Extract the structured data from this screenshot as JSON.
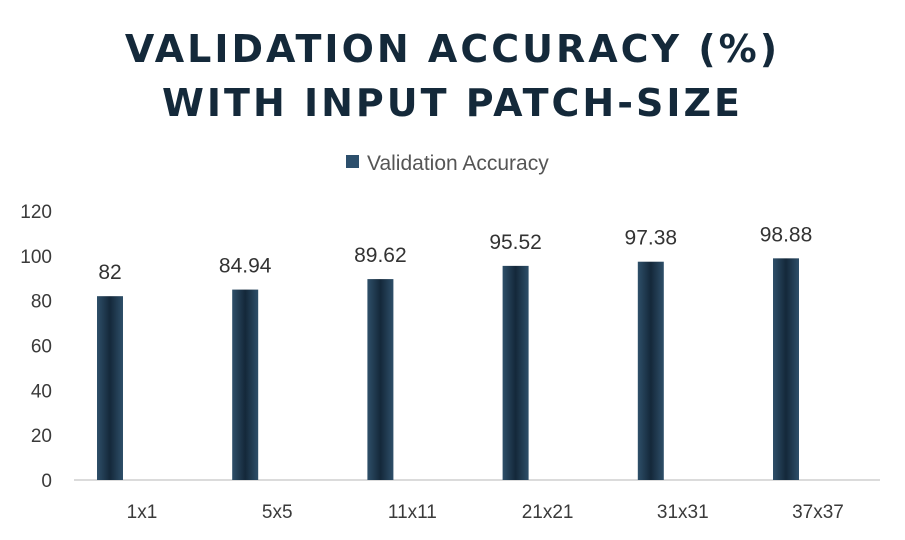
{
  "chart_data": {
    "type": "bar",
    "title_lines": [
      "VALIDATION ACCURACY (%)",
      "WITH INPUT PATCH-SIZE"
    ],
    "categories": [
      "1x1",
      "5x5",
      "11x11",
      "21x21",
      "31x31",
      "37x37"
    ],
    "series": [
      {
        "name": "Validation Accuracy",
        "values": [
          82,
          84.94,
          89.62,
          95.52,
          97.38,
          98.88
        ],
        "color": "#1c3549"
      }
    ],
    "data_labels": [
      "82",
      "84.94",
      "89.62",
      "95.52",
      "97.38",
      "98.88"
    ],
    "y_ticks": [
      0,
      20,
      40,
      60,
      80,
      100,
      120
    ],
    "ylim": [
      0,
      120
    ],
    "legend_position": "top-center",
    "grid": false
  }
}
